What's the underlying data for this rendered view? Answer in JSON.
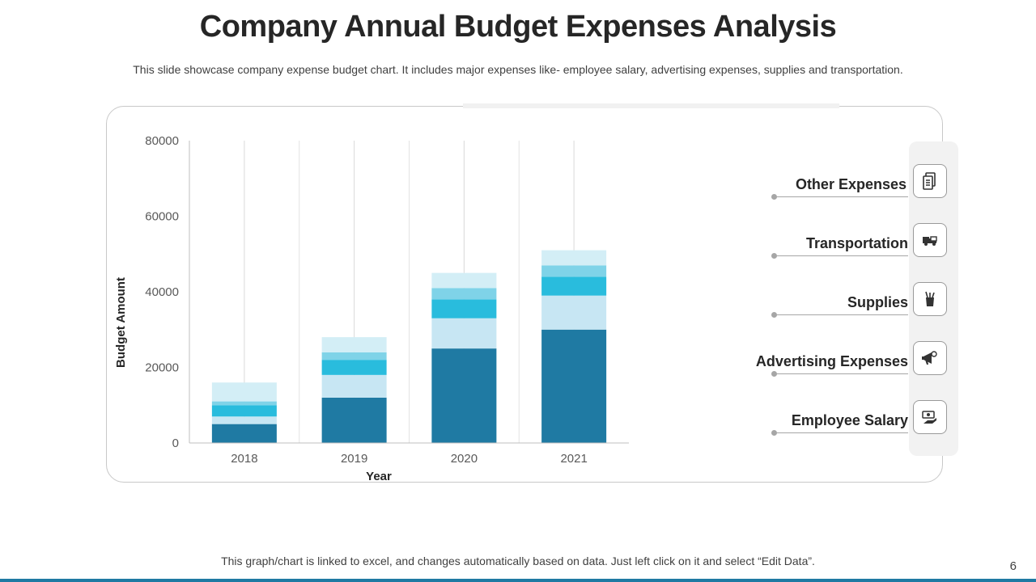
{
  "slide": {
    "title": "Company Annual Budget Expenses Analysis",
    "subtitle": "This slide showcase company expense budget chart. It includes major expenses like- employee salary, advertising expenses, supplies and transportation.",
    "footer": "This graph/chart is linked to excel, and changes automatically based on data. Just left click on it and select “Edit Data”.",
    "page_number": "6"
  },
  "legend": [
    {
      "label": "Other Expenses",
      "icon": "document-icon",
      "color": "#d3eef6"
    },
    {
      "label": "Transportation",
      "icon": "truck-icon",
      "color": "#7fd3e8"
    },
    {
      "label": "Supplies",
      "icon": "supplies-cup-icon",
      "color": "#29bcdd"
    },
    {
      "label": "Advertising Expenses",
      "icon": "megaphone-icon",
      "color": "#c7e6f3"
    },
    {
      "label": "Employee Salary",
      "icon": "money-hand-icon",
      "color": "#1f7aa3"
    }
  ],
  "chart_data": {
    "type": "bar",
    "stacked": true,
    "categories": [
      "2018",
      "2019",
      "2020",
      "2021"
    ],
    "series": [
      {
        "name": "Employee Salary",
        "values": [
          5000,
          12000,
          25000,
          30000
        ],
        "color": "#1f7aa3"
      },
      {
        "name": "Advertising Expenses",
        "values": [
          2000,
          6000,
          8000,
          9000
        ],
        "color": "#c7e6f3"
      },
      {
        "name": "Supplies",
        "values": [
          3000,
          4000,
          5000,
          5000
        ],
        "color": "#29bcdd"
      },
      {
        "name": "Transportation",
        "values": [
          1000,
          2000,
          3000,
          3000
        ],
        "color": "#7fd3e8"
      },
      {
        "name": "Other Expenses",
        "values": [
          5000,
          4000,
          4000,
          4000
        ],
        "color": "#d3eef6"
      }
    ],
    "xlabel": "Year",
    "ylabel": "Budget Amount",
    "ylim": [
      0,
      80000
    ],
    "yticks": [
      "0",
      "20000",
      "40000",
      "60000",
      "80000"
    ],
    "grid": "vertical"
  }
}
